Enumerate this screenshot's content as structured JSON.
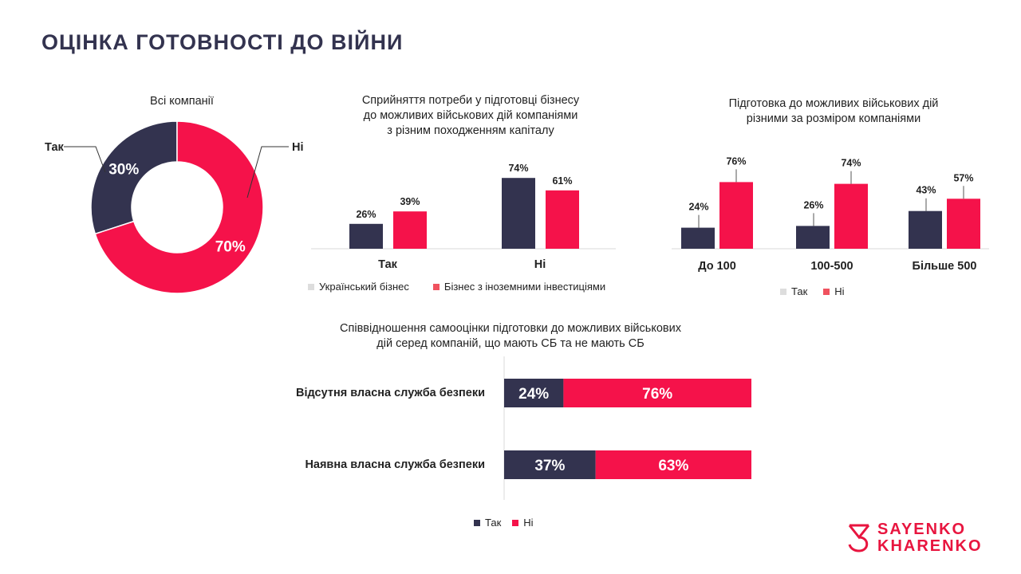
{
  "title": "ОЦІНКА ГОТОВНОСТІ ДО ВІЙНИ",
  "colors": {
    "navy": "#33334f",
    "red": "#f5124a",
    "accent": "#e8153f",
    "grey": "#dddddd"
  },
  "chart_data": [
    {
      "type": "pie",
      "title": "Всі компанії",
      "categories": [
        "Так",
        "Ні"
      ],
      "values": [
        30,
        70
      ],
      "value_labels": [
        "30%",
        "70%"
      ]
    },
    {
      "type": "bar",
      "title": "Сприйняття потреби у підготовці бізнесу до можливих військових дій компаніями з різним походженням капіталу",
      "title_lines": [
        "Сприйняття потреби у підготовці бізнесу",
        "до можливих військових дій компаніями",
        "з різним походженням капіталу"
      ],
      "categories": [
        "Так",
        "Ні"
      ],
      "series": [
        {
          "name": "Український бізнес",
          "values": [
            26,
            74
          ],
          "labels": [
            "26%",
            "74%"
          ]
        },
        {
          "name": "Бізнес з іноземними інвестиціями",
          "values": [
            39,
            61
          ],
          "labels": [
            "39%",
            "61%"
          ]
        }
      ],
      "legend_position": "bottom"
    },
    {
      "type": "bar",
      "title": "Підготовка до можливих військових дій різними за розміром компаніями",
      "title_lines": [
        "Підготовка до можливих військових дій",
        "різними за розміром компаніями"
      ],
      "categories": [
        "До 100",
        "100-500",
        "Більше 500"
      ],
      "series": [
        {
          "name": "Так",
          "values": [
            24,
            26,
            43
          ],
          "labels": [
            "24%",
            "26%",
            "43%"
          ]
        },
        {
          "name": "Ні",
          "values": [
            76,
            74,
            57
          ],
          "labels": [
            "76%",
            "74%",
            "57%"
          ]
        }
      ],
      "legend_position": "bottom"
    },
    {
      "type": "bar",
      "orientation": "horizontal",
      "stacked": true,
      "title": "Співвідношення самооцінки підготовки до можливих військових дій серед компаній, що мають СБ та не мають СБ",
      "title_lines": [
        "Співвідношення самооцінки підготовки до можливих військових",
        "дій серед компаній, що мають СБ та не мають СБ"
      ],
      "categories": [
        "Відсутня власна служба безпеки",
        "Наявна власна служба безпеки"
      ],
      "series": [
        {
          "name": "Так",
          "values": [
            24,
            37
          ],
          "labels": [
            "24%",
            "37%"
          ]
        },
        {
          "name": "Ні",
          "values": [
            76,
            63
          ],
          "labels": [
            "76%",
            "63%"
          ]
        }
      ],
      "legend_position": "bottom"
    }
  ],
  "logo": {
    "line1": "SAYENKO",
    "line2": "KHARENKO"
  }
}
